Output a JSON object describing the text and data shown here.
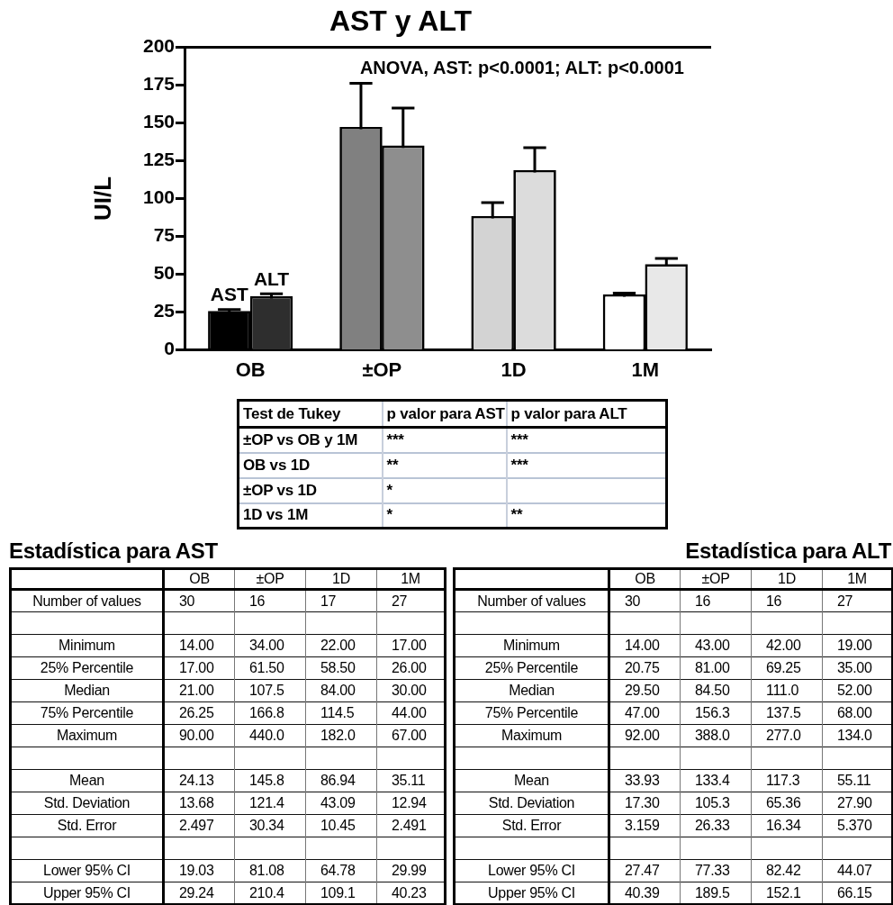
{
  "chart_data": [
    {
      "type": "bar",
      "title": "AST y ALT",
      "ylabel": "UI/L",
      "categories": [
        "OB",
        "±OP",
        "1D",
        "1M"
      ],
      "series": [
        {
          "name": "AST",
          "colors": [
            "#000000",
            "#808080",
            "#d3d3d3",
            "#ffffff"
          ],
          "values": [
            24.13,
            145.8,
            86.94,
            35.11
          ],
          "errors": [
            [
              24.13,
              26.63
            ],
            [
              145.8,
              176.14
            ],
            [
              86.94,
              97.39
            ],
            [
              35.11,
              37.6
            ]
          ]
        },
        {
          "name": "ALT",
          "colors": [
            "#2e2e2e",
            "#8e8e8e",
            "#dcdcdc",
            "#e8e8e8"
          ],
          "values": [
            33.93,
            133.4,
            117.3,
            55.11
          ],
          "errors": [
            [
              33.93,
              37.09
            ],
            [
              133.4,
              159.73
            ],
            [
              117.3,
              133.64
            ],
            [
              55.11,
              60.48
            ]
          ]
        }
      ],
      "ylim": [
        0,
        200
      ],
      "yticks": [
        0,
        25,
        50,
        75,
        100,
        125,
        150,
        175,
        200
      ],
      "legend": false,
      "annotations": [
        "ANOVA, AST: p<0.0001; ALT: p<0.0001"
      ]
    },
    {
      "type": "other",
      "cell_labels": [
        [
          "Test de Tukey",
          "p valor para AST",
          "p valor para ALT"
        ],
        [
          "±OP vs OB y 1M",
          "***",
          "***"
        ],
        [
          "OB vs 1D",
          "**",
          "***"
        ],
        [
          "±OP vs 1D",
          "*",
          null
        ],
        [
          "1D vs 1M",
          "*",
          "**"
        ]
      ]
    },
    {
      "type": "other",
      "title": "Estadística para AST",
      "cell_labels": [
        [
          null,
          "OB",
          "±OP",
          "1D",
          "1M"
        ],
        [
          "Number of values",
          "30",
          "16",
          "17",
          "27"
        ],
        [
          null,
          null,
          null,
          null,
          null
        ],
        [
          "Minimum",
          "14.00",
          "34.00",
          "22.00",
          "17.00"
        ],
        [
          "25% Percentile",
          "17.00",
          "61.50",
          "58.50",
          "26.00"
        ],
        [
          "Median",
          "21.00",
          "107.5",
          "84.00",
          "30.00"
        ],
        [
          "75% Percentile",
          "26.25",
          "166.8",
          "114.5",
          "44.00"
        ],
        [
          "Maximum",
          "90.00",
          "440.0",
          "182.0",
          "67.00"
        ],
        [
          null,
          null,
          null,
          null,
          null
        ],
        [
          "Mean",
          "24.13",
          "145.8",
          "86.94",
          "35.11"
        ],
        [
          "Std. Deviation",
          "13.68",
          "121.4",
          "43.09",
          "12.94"
        ],
        [
          "Std. Error",
          "2.497",
          "30.34",
          "10.45",
          "2.491"
        ],
        [
          null,
          null,
          null,
          null,
          null
        ],
        [
          "Lower 95% CI",
          "19.03",
          "81.08",
          "64.78",
          "29.99"
        ],
        [
          "Upper 95% CI",
          "29.24",
          "210.4",
          "109.1",
          "40.23"
        ]
      ]
    },
    {
      "type": "other",
      "title": "Estadística para ALT",
      "cell_labels": [
        [
          null,
          "OB",
          "±OP",
          "1D",
          "1M"
        ],
        [
          "Number of values",
          "30",
          "16",
          "16",
          "27"
        ],
        [
          null,
          null,
          null,
          null,
          null
        ],
        [
          "Minimum",
          "14.00",
          "43.00",
          "42.00",
          "19.00"
        ],
        [
          "25% Percentile",
          "20.75",
          "81.00",
          "69.25",
          "35.00"
        ],
        [
          "Median",
          "29.50",
          "84.50",
          "111.0",
          "52.00"
        ],
        [
          "75% Percentile",
          "47.00",
          "156.3",
          "137.5",
          "68.00"
        ],
        [
          "Maximum",
          "92.00",
          "388.0",
          "277.0",
          "134.0"
        ],
        [
          null,
          null,
          null,
          null,
          null
        ],
        [
          "Mean",
          "33.93",
          "133.4",
          "117.3",
          "55.11"
        ],
        [
          "Std. Deviation",
          "17.30",
          "105.3",
          "65.36",
          "27.90"
        ],
        [
          "Std. Error",
          "3.159",
          "26.33",
          "16.34",
          "5.370"
        ],
        [
          null,
          null,
          null,
          null,
          null
        ],
        [
          "Lower 95% CI",
          "27.47",
          "77.33",
          "82.42",
          "44.07"
        ],
        [
          "Upper 95% CI",
          "40.39",
          "189.5",
          "152.1",
          "66.15"
        ]
      ]
    }
  ]
}
